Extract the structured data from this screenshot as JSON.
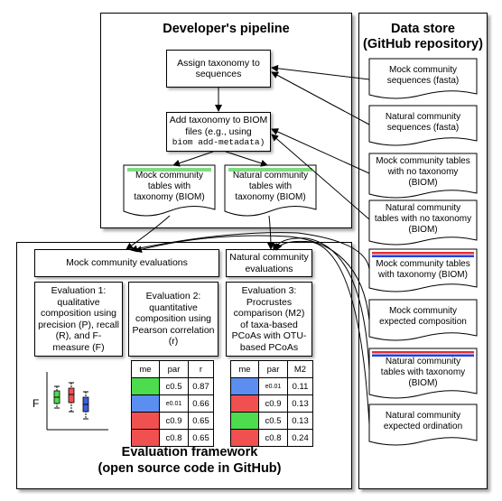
{
  "pipeline": {
    "title": "Developer's pipeline",
    "assign_box": "Assign taxonomy to sequences",
    "add_box_line1": "Add taxonomy to BIOM files (e.g., using",
    "add_box_code": "biom add-metadata)",
    "mock_doc": "Mock community tables with taxonomy (BIOM)",
    "natural_doc": "Natural community tables with taxonomy (BIOM)"
  },
  "datastore": {
    "title_line1": "Data store",
    "title_line2": "(GitHub repository)",
    "items": [
      "Mock community sequences (fasta)",
      "Natural community sequences (fasta)",
      "Mock community tables with no taxonomy (BIOM)",
      "Natural community tables with no taxonomy (BIOM)",
      "Mock community tables with taxonomy (BIOM)",
      "Mock community expected composition",
      "Natural community tables with taxonomy (BIOM)",
      "Natural community expected ordination"
    ]
  },
  "evaluation": {
    "mock_header": "Mock community evaluations",
    "natural_header": "Natural community evaluations",
    "eval1": "Evaluation 1: qualitative composition using precision (P), recall (R), and F-measure (F)",
    "eval2": "Evaluation 2: quantitative composition using Pearson correlation (r)",
    "eval3": "Evaluation 3: Procrustes comparison (M2) of taxa-based PCoAs with OTU-based PCoAs",
    "plot_ylabel": "F",
    "title_line1": "Evaluation framework",
    "title_line2": "(open source code in GitHub)",
    "table_r": {
      "headers": [
        "me",
        "par",
        "r"
      ],
      "rows": [
        [
          "",
          "c0.5",
          "0.87"
        ],
        [
          "",
          "e0.01",
          "0.66"
        ],
        [
          "",
          "c0.9",
          "0.65"
        ],
        [
          "",
          "c0.8",
          "0.65"
        ]
      ]
    },
    "table_m2": {
      "headers": [
        "me",
        "par",
        "M2"
      ],
      "rows": [
        [
          "",
          "e0.01",
          "0.11"
        ],
        [
          "",
          "c0.9",
          "0.13"
        ],
        [
          "",
          "c0.5",
          "0.13"
        ],
        [
          "",
          "c0.8",
          "0.24"
        ]
      ]
    }
  },
  "colors": {
    "green": "#4ddc4d",
    "blue": "#5b8ef0",
    "red": "#f05050",
    "doc_green_bar": "#7fdc7f",
    "store_red": "#e03030",
    "store_blue": "#2040e0"
  }
}
